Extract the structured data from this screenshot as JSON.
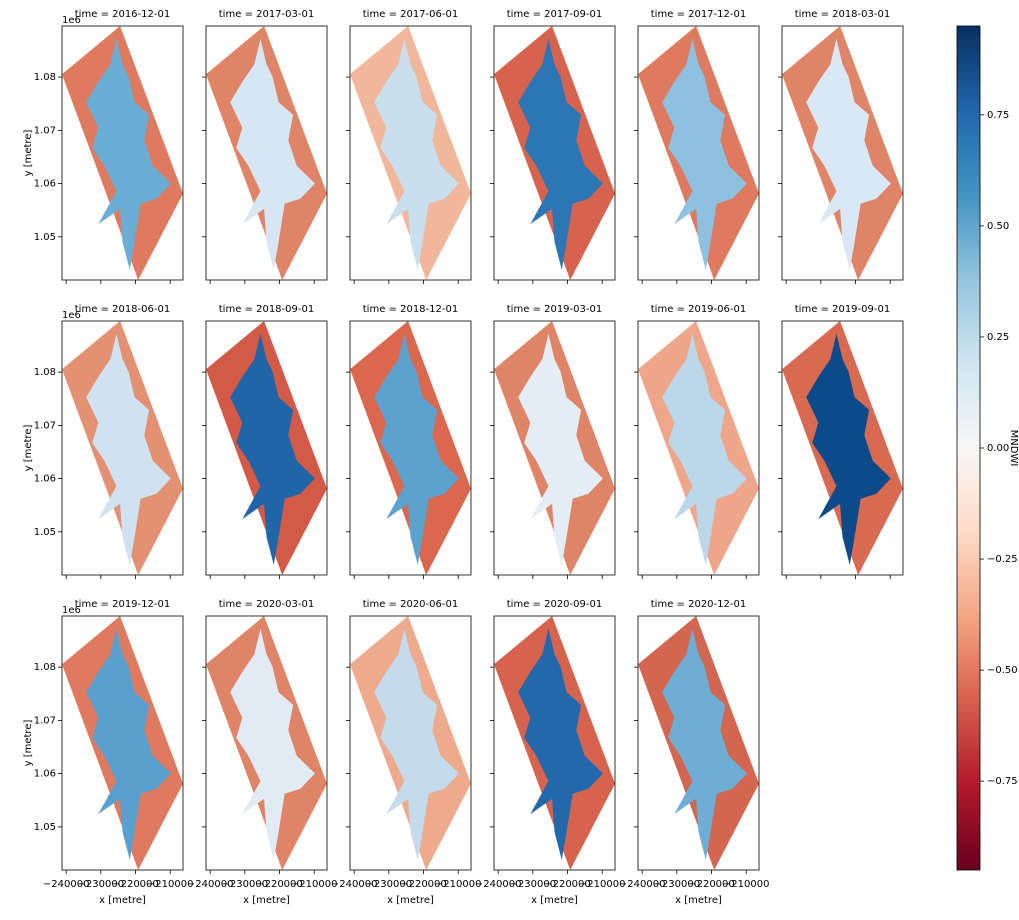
{
  "chart_data": {
    "type": "facet_image",
    "panels": [
      {
        "title": "time = 2016-12-01",
        "land_color": "#de7a5f",
        "water_color": "#6aaed6"
      },
      {
        "title": "time = 2017-03-01",
        "land_color": "#e08468",
        "water_color": "#d6e6f2"
      },
      {
        "title": "time = 2017-06-01",
        "land_color": "#f0b79a",
        "water_color": "#c9dfee"
      },
      {
        "title": "time = 2017-09-01",
        "land_color": "#d6634d",
        "water_color": "#2c76b6"
      },
      {
        "title": "time = 2017-12-01",
        "land_color": "#de7a5f",
        "water_color": "#8ec0df"
      },
      {
        "title": "time = 2018-03-01",
        "land_color": "#e08468",
        "water_color": "#dae8f3"
      },
      {
        "title": "time = 2018-06-01",
        "land_color": "#e39073",
        "water_color": "#d0e2ef"
      },
      {
        "title": "time = 2018-09-01",
        "land_color": "#d25a46",
        "water_color": "#1f65a8"
      },
      {
        "title": "time = 2018-12-01",
        "land_color": "#d9684f",
        "water_color": "#5ca2cf"
      },
      {
        "title": "time = 2019-03-01",
        "land_color": "#e08468",
        "water_color": "#e4edf5"
      },
      {
        "title": "time = 2019-06-01",
        "land_color": "#eda68a",
        "water_color": "#bcd7ea"
      },
      {
        "title": "time = 2019-09-01",
        "land_color": "#d86a52",
        "water_color": "#0d4a8a"
      },
      {
        "title": "time = 2019-12-01",
        "land_color": "#de7a5f",
        "water_color": "#5aa0ce"
      },
      {
        "title": "time = 2020-03-01",
        "land_color": "#e08468",
        "water_color": "#e0ebf4"
      },
      {
        "title": "time = 2020-06-01",
        "land_color": "#eeaa8c",
        "water_color": "#c3dbec"
      },
      {
        "title": "time = 2020-09-01",
        "land_color": "#d6634d",
        "water_color": "#2169ac"
      },
      {
        "title": "time = 2020-12-01",
        "land_color": "#d36650",
        "water_color": "#6eaed5"
      }
    ],
    "columns": 6,
    "xlabel": "x [metre]",
    "ylabel": "y [metre]",
    "y_offset": "1e6",
    "xlim": [
      -241200,
      -206300
    ],
    "xticks": [
      {
        "value": -240000,
        "label": "−240000"
      },
      {
        "value": -230000,
        "label": "−230000"
      },
      {
        "value": -220000,
        "label": "−220000"
      },
      {
        "value": -210000,
        "label": "−210000"
      }
    ],
    "ylim": [
      1.0419,
      1.0896
    ],
    "yticks": [
      1.05,
      1.06,
      1.07,
      1.08
    ],
    "colorbar_label": "MNDWI",
    "cmap": "RdBu",
    "clim": [
      -0.95,
      0.95
    ],
    "cticks": [
      {
        "value": -0.75,
        "label": "−0.75"
      },
      {
        "value": -0.5,
        "label": "−0.50"
      },
      {
        "value": -0.25,
        "label": "−0.25"
      },
      {
        "value": 0,
        "label": "0.00"
      },
      {
        "value": 0.25,
        "label": "0.25"
      },
      {
        "value": 0.5,
        "label": "0.50"
      },
      {
        "value": 0.75,
        "label": "0.75"
      }
    ]
  }
}
